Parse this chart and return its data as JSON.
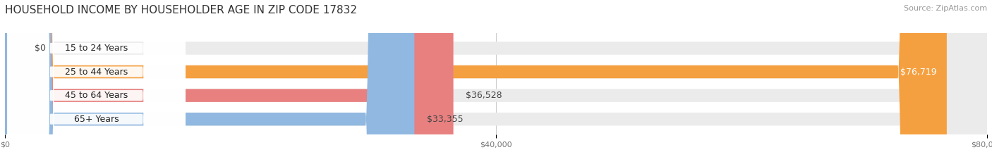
{
  "title": "HOUSEHOLD INCOME BY HOUSEHOLDER AGE IN ZIP CODE 17832",
  "source": "Source: ZipAtlas.com",
  "categories": [
    "15 to 24 Years",
    "25 to 44 Years",
    "45 to 64 Years",
    "65+ Years"
  ],
  "values": [
    0,
    76719,
    36528,
    33355
  ],
  "bar_colors": [
    "#F896A8",
    "#F5A040",
    "#E88080",
    "#90B8E0"
  ],
  "bar_bg_color": "#EBEBEB",
  "bar_labels": [
    "$0",
    "$76,719",
    "$36,528",
    "$33,355"
  ],
  "xlim": [
    0,
    80000
  ],
  "xticks": [
    0,
    40000,
    80000
  ],
  "xtick_labels": [
    "$0",
    "$40,000",
    "$80,000"
  ],
  "background_color": "#FFFFFF",
  "title_fontsize": 11,
  "source_fontsize": 8,
  "bar_height": 0.55,
  "label_fontsize": 9,
  "pill_color": "#FFFFFF"
}
